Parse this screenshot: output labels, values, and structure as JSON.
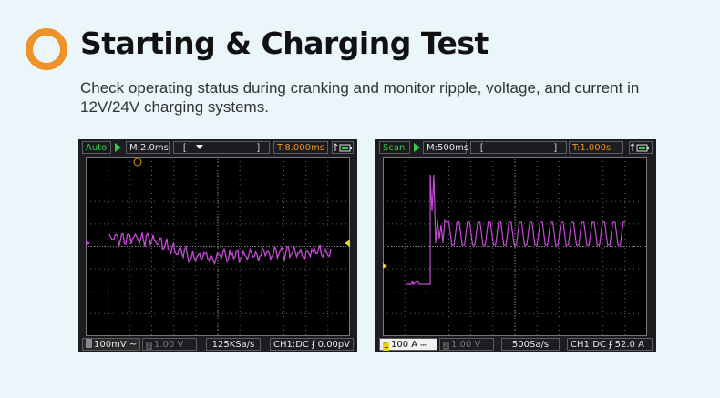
{
  "header": {
    "title": "Starting & Charging Test",
    "description": "Check operating status during cranking and monitor ripple, voltage, and current in 12V/24V charging systems."
  },
  "colors": {
    "accent": "#ef9227",
    "trace": "#c74ad8",
    "mode": "#35c94a"
  },
  "scopes": [
    {
      "mode": "Auto",
      "timebase": "M:2.0ms",
      "trigger_time": "T:8.000ms",
      "ch1_scale": "100mV",
      "ch1_coupling_icon": "~",
      "ch2_scale": "1.00 V",
      "ch2_number": "2",
      "sample_rate": "125KSa/s",
      "trigger_source": "CH1:DC",
      "trigger_level": "0.00pV"
    },
    {
      "mode": "Scan",
      "timebase": "M:500ms",
      "trigger_time": "T:1.000s",
      "ch1_number": "1",
      "ch1_scale": "100 A",
      "ch2_number": "2",
      "ch2_scale": "1.00 V",
      "sample_rate": "500Sa/s",
      "trigger_source": "CH1:DC",
      "trigger_level": "52.0 A"
    }
  ]
}
